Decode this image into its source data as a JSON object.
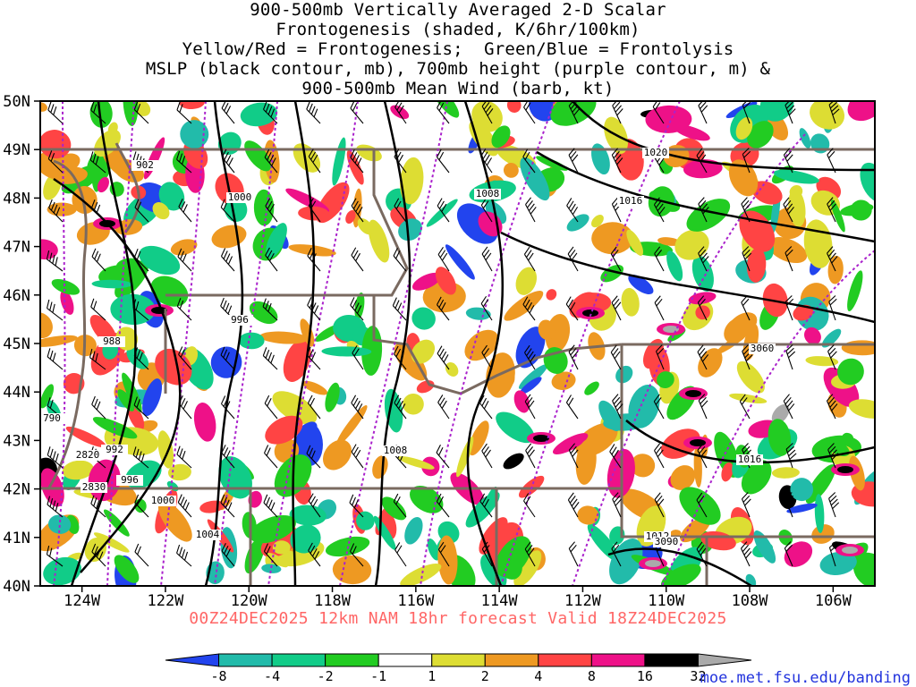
{
  "title_lines": [
    "900-500mb Vertically Averaged 2-D Scalar",
    "Frontogenesis (shaded, K/6hr/100km)",
    "Yellow/Red = Frontogenesis;  Green/Blue = Frontolysis",
    "MSLP (black contour, mb), 700mb height (purple contour, m) &",
    "900-500mb Mean Wind (barb, kt)"
  ],
  "valid_line": "00Z24DEC2025 12km NAM 18hr forecast Valid 18Z24DEC2025",
  "credit": "moe.met.fsu.edu/banding",
  "axes": {
    "lat_labels": [
      "50N",
      "49N",
      "48N",
      "47N",
      "46N",
      "45N",
      "44N",
      "43N",
      "42N",
      "41N",
      "40N"
    ],
    "lon_labels": [
      "124W",
      "122W",
      "120W",
      "118W",
      "116W",
      "114W",
      "112W",
      "110W",
      "108W",
      "106W"
    ]
  },
  "colorbar": {
    "ticks": [
      "-8",
      "-4",
      "-2",
      "-1",
      "1",
      "2",
      "4",
      "8",
      "16",
      "32"
    ],
    "colors": [
      "#2244ee",
      "#22bbaa",
      "#11cc88",
      "#22cc22",
      "#ffffff",
      "#dddd33",
      "#ee9922",
      "#ff4444",
      "#ee1188",
      "#000000",
      "#aaaaaa"
    ]
  },
  "contour_labels": {
    "mslp": [
      "902",
      "1000",
      "996",
      "988",
      "992",
      "996",
      "1000",
      "1004",
      "1008",
      "1008",
      "1020",
      "1016",
      "1016",
      "1012"
    ],
    "height": [
      "790",
      "2820",
      "2830",
      "3060",
      "3090"
    ]
  },
  "colors": {
    "mslp": "#000000",
    "height": "#aa22cc",
    "borders": "#7a6a60",
    "grid": "#7a6a60"
  }
}
